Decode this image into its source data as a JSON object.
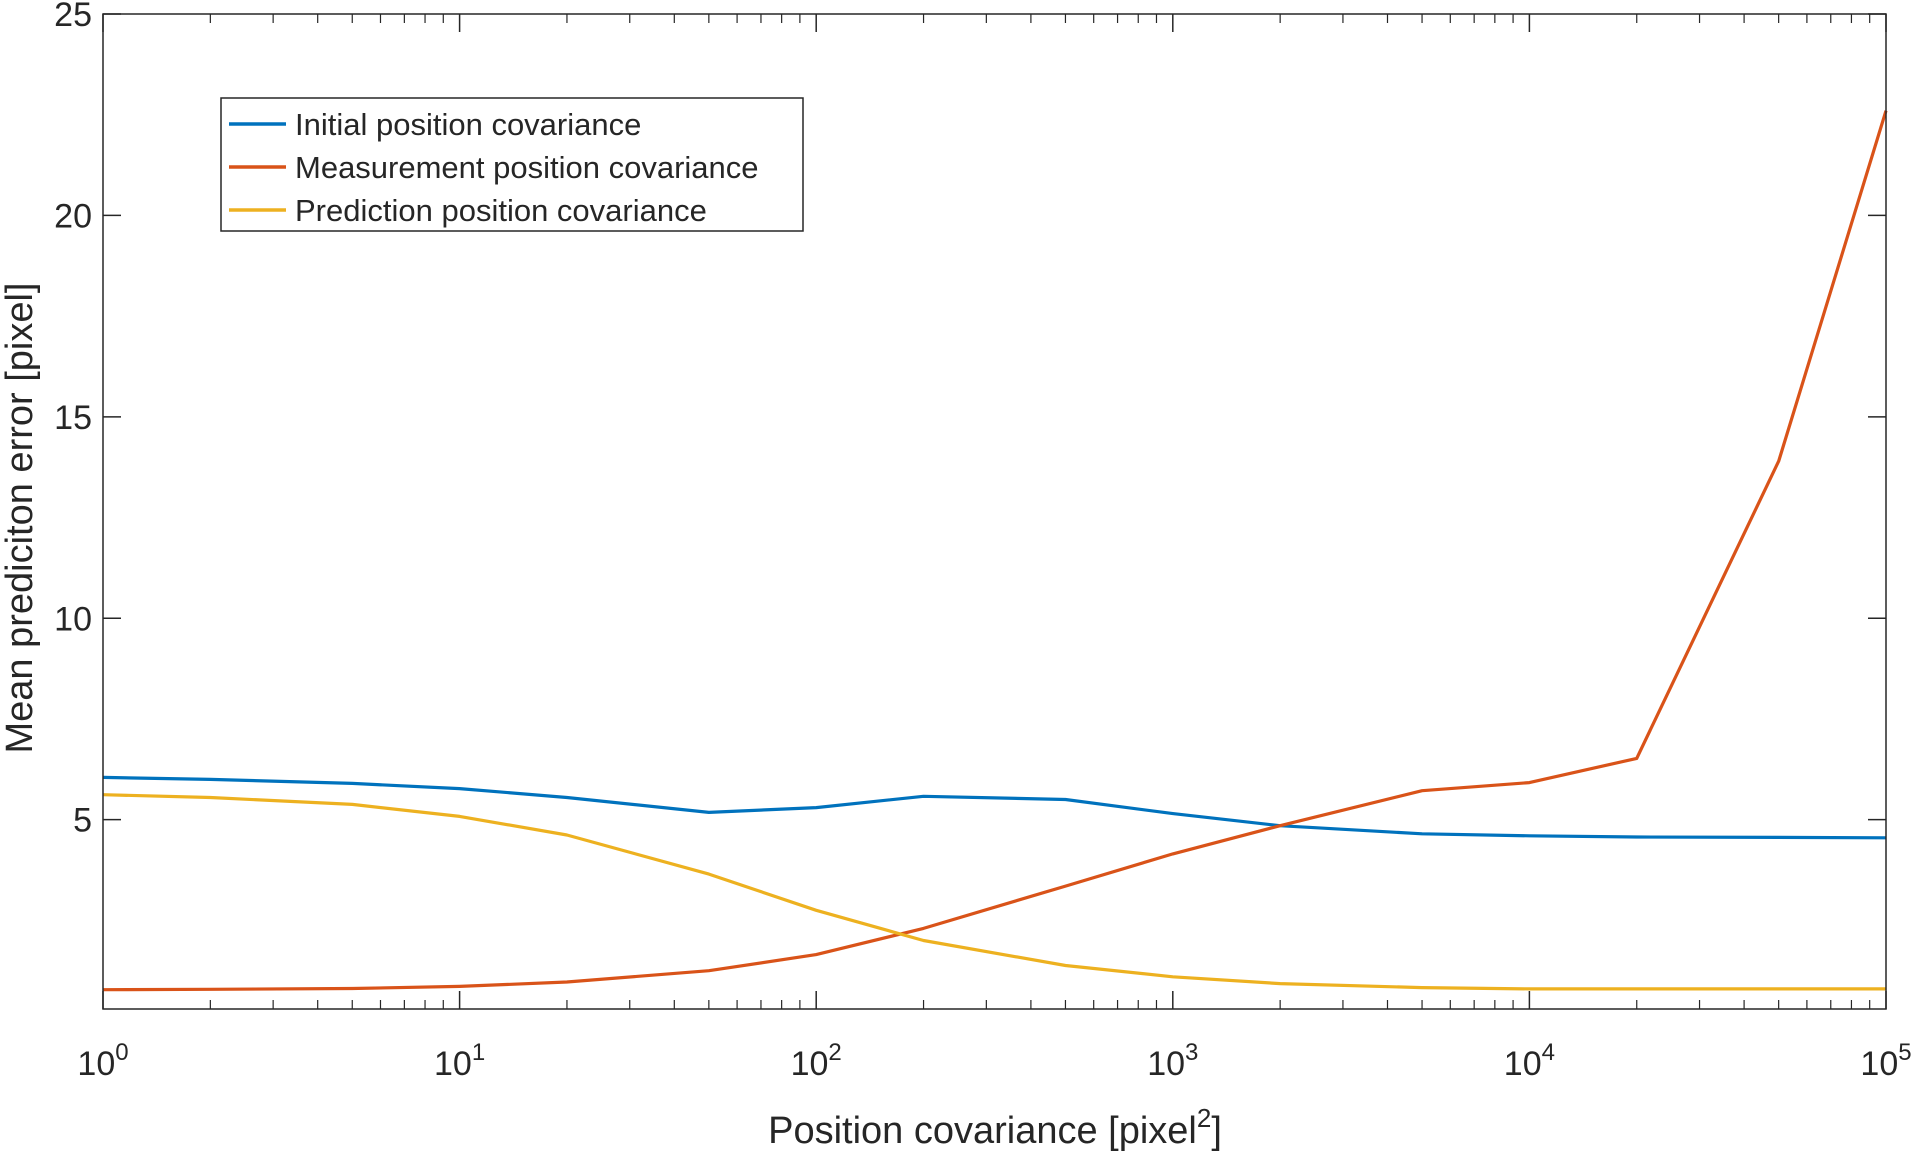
{
  "chart_data": {
    "type": "line",
    "xlabel": "Position covariance [pixel",
    "xlabel_sup": "2",
    "xlabel_end": "]",
    "ylabel": "Mean prediciton error [pixel]",
    "x_scale": "log",
    "xlim": [
      1,
      100000
    ],
    "ylim": [
      0.3,
      25
    ],
    "grid": false,
    "legend_position": "top-left",
    "x_ticks": [
      {
        "value": 1,
        "base": "10",
        "exp": "0"
      },
      {
        "value": 10,
        "base": "10",
        "exp": "1"
      },
      {
        "value": 100,
        "base": "10",
        "exp": "2"
      },
      {
        "value": 1000,
        "base": "10",
        "exp": "3"
      },
      {
        "value": 10000,
        "base": "10",
        "exp": "4"
      },
      {
        "value": 100000,
        "base": "10",
        "exp": "5"
      }
    ],
    "y_ticks": [
      {
        "value": 5,
        "label": "5"
      },
      {
        "value": 10,
        "label": "10"
      },
      {
        "value": 15,
        "label": "15"
      },
      {
        "value": 20,
        "label": "20"
      },
      {
        "value": 25,
        "label": "25"
      }
    ],
    "x": [
      1,
      2,
      5,
      10,
      20,
      50,
      100,
      200,
      500,
      1000,
      2000,
      5000,
      10000,
      20000,
      50000,
      100000
    ],
    "series": [
      {
        "name": "Initial position covariance",
        "color": "#0072BD",
        "values": [
          6.05,
          6.0,
          5.9,
          5.77,
          5.55,
          5.18,
          5.3,
          5.58,
          5.5,
          5.15,
          4.85,
          4.65,
          4.6,
          4.57,
          4.56,
          4.55
        ]
      },
      {
        "name": "Measurement position covariance",
        "color": "#D95319",
        "values": [
          0.78,
          0.79,
          0.81,
          0.86,
          0.97,
          1.25,
          1.65,
          2.3,
          3.35,
          4.15,
          4.85,
          5.72,
          5.92,
          6.52,
          13.9,
          22.6
        ]
      },
      {
        "name": "Prediction position covariance",
        "color": "#EDB120",
        "values": [
          5.62,
          5.55,
          5.38,
          5.08,
          4.62,
          3.65,
          2.75,
          2.0,
          1.38,
          1.1,
          0.93,
          0.83,
          0.8,
          0.8,
          0.8,
          0.8
        ]
      }
    ]
  }
}
